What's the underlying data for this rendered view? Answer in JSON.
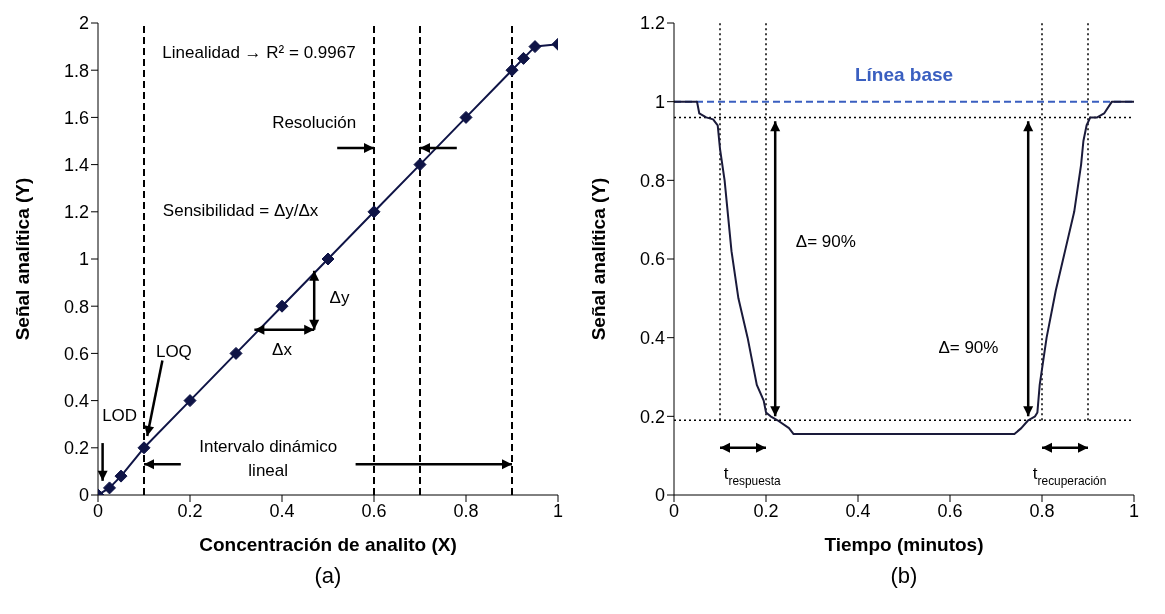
{
  "chart_data": [
    {
      "type": "line",
      "xlabel": "Concentración de analito (X)",
      "ylabel": "Señal analítica (Y)",
      "x": [
        0,
        0.025,
        0.05,
        0.1,
        0.2,
        0.3,
        0.4,
        0.5,
        0.6,
        0.7,
        0.8,
        0.9,
        0.925,
        0.95,
        1
      ],
      "series": [
        {
          "color": "#0f1446",
          "values": [
            0,
            0.03,
            0.08,
            0.2,
            0.4,
            0.6,
            0.8,
            1.0,
            1.2,
            1.4,
            1.6,
            1.8,
            1.85,
            1.9,
            1.91
          ]
        }
      ],
      "marker": "diamond",
      "xlim": [
        0,
        1
      ],
      "xticks": [
        0,
        0.2,
        0.4,
        0.6,
        0.8,
        1
      ],
      "ylim": [
        0,
        2
      ],
      "yticks": [
        0,
        0.2,
        0.4,
        0.6,
        0.8,
        1,
        1.2,
        1.4,
        1.6,
        1.8,
        2
      ],
      "ref_lines": [
        {
          "axis": "x",
          "value": 0.1,
          "color": "#000000",
          "line_style": "dashed"
        },
        {
          "axis": "x",
          "value": 0.6,
          "color": "#000000",
          "line_style": "dashed"
        },
        {
          "axis": "x",
          "value": 0.7,
          "color": "#000000",
          "line_style": "dashed"
        },
        {
          "axis": "x",
          "value": 0.9,
          "color": "#000000",
          "line_style": "dashed"
        }
      ],
      "annotations": [
        "Linealidad → R² = 0.9967",
        "Resolución",
        "Sensibilidad = Δy/Δx",
        "Δy",
        "Δx",
        {
          "text": "LOQ",
          "x": 0.107,
          "y": 0.25
        },
        "LOD",
        {
          "text": "Intervalo dinámico lineal",
          "x": 0.9,
          "y": 0.13
        },
        "(a)"
      ]
    },
    {
      "type": "line",
      "xlabel": "Tiempo (minutos)",
      "ylabel": "Señal analítica (Y)",
      "x": [
        0,
        0.05,
        0.055,
        0.07,
        0.085,
        0.095,
        0.1,
        0.11,
        0.125,
        0.14,
        0.16,
        0.18,
        0.195,
        0.2,
        0.21,
        0.225,
        0.25,
        0.26,
        0.74,
        0.755,
        0.77,
        0.785,
        0.79,
        0.795,
        0.81,
        0.83,
        0.85,
        0.87,
        0.885,
        0.89,
        0.897,
        0.905,
        0.92,
        0.935,
        0.952,
        1
      ],
      "series": [
        {
          "color": "#1a1a3a",
          "values": [
            1,
            1,
            0.97,
            0.96,
            0.955,
            0.94,
            0.88,
            0.8,
            0.62,
            0.5,
            0.4,
            0.28,
            0.24,
            0.21,
            0.2,
            0.19,
            0.17,
            0.155,
            0.155,
            0.17,
            0.19,
            0.2,
            0.21,
            0.28,
            0.4,
            0.52,
            0.62,
            0.72,
            0.84,
            0.9,
            0.94,
            0.96,
            0.96,
            0.97,
            1,
            1
          ]
        }
      ],
      "marker": "none",
      "xlim": [
        0,
        1
      ],
      "xticks": [
        0,
        0.2,
        0.4,
        0.6,
        0.8,
        1
      ],
      "ylim": [
        0,
        1.2
      ],
      "yticks": [
        0,
        0.2,
        0.4,
        0.6,
        0.8,
        1,
        1.2
      ],
      "ref_lines": [
        {
          "axis": "y",
          "value": 1,
          "label": "Línea base",
          "color": "#3a5fc0",
          "line_style": "dashed"
        },
        {
          "axis": "y",
          "value": 0.96,
          "color": "#000000",
          "line_style": "dotted"
        },
        {
          "axis": "y",
          "value": 0.19,
          "color": "#000000",
          "line_style": "dotted"
        },
        {
          "axis": "x",
          "value": 0.1,
          "color": "#000000",
          "line_style": "dotted"
        },
        {
          "axis": "x",
          "value": 0.2,
          "color": "#000000",
          "line_style": "dotted"
        },
        {
          "axis": "x",
          "value": 0.8,
          "color": "#000000",
          "line_style": "dotted"
        },
        {
          "axis": "x",
          "value": 0.9,
          "color": "#000000",
          "line_style": "dotted"
        }
      ],
      "annotations": [
        "Δ= 90%",
        "Δ= 90%",
        "t$_{respuesta}$",
        "t$_{recuperación}$",
        "(b)"
      ]
    }
  ]
}
